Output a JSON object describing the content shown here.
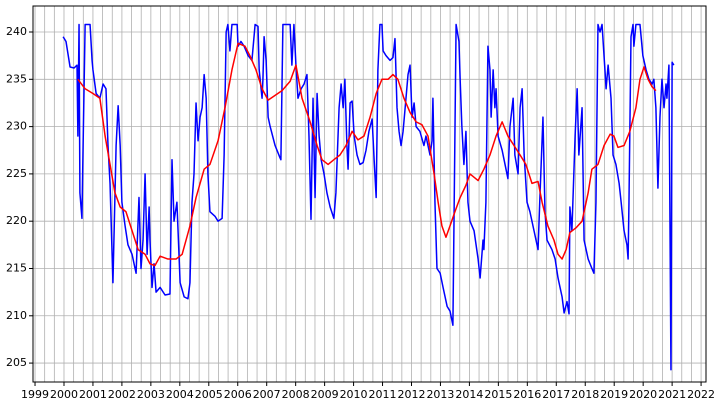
{
  "chart_data": {
    "type": "line",
    "xlim": [
      1998.93,
      2022.17
    ],
    "ylim": [
      203.0,
      242.75
    ],
    "xticks": [
      1999,
      2000,
      2001,
      2002,
      2003,
      2004,
      2005,
      2006,
      2007,
      2008,
      2009,
      2010,
      2011,
      2012,
      2013,
      2014,
      2015,
      2016,
      2017,
      2018,
      2019,
      2020,
      2021,
      2022
    ],
    "xminorticks": [
      1999.333,
      1999.667,
      2000.333,
      2000.667,
      2001.333,
      2001.667,
      2002.333,
      2002.667,
      2003.333,
      2003.667,
      2004.333,
      2004.667,
      2005.333,
      2005.667,
      2006.333,
      2006.667,
      2007.333,
      2007.667,
      2008.333,
      2008.667,
      2009.333,
      2009.667,
      2010.333,
      2010.667,
      2011.333,
      2011.667,
      2012.333,
      2012.667,
      2013.333,
      2013.667,
      2014.333,
      2014.667,
      2015.333,
      2015.667,
      2016.333,
      2016.667,
      2017.333,
      2017.667,
      2018.333,
      2018.667,
      2019.333,
      2019.667,
      2020.333,
      2020.667,
      2021.333,
      2021.667
    ],
    "yticks": [
      205,
      210,
      215,
      220,
      225,
      230,
      235,
      240
    ],
    "grid": true,
    "series": [
      {
        "color": "#0000ff",
        "x": [
          1999.97,
          2000.07,
          2000.21,
          2000.35,
          2000.45,
          2000.48,
          2000.52,
          2000.55,
          2000.62,
          2000.66,
          2000.73,
          2000.9,
          2000.97,
          2001.0,
          2001.11,
          2001.24,
          2001.35,
          2001.45,
          2001.52,
          2001.59,
          2001.69,
          2001.8,
          2001.87,
          2001.94,
          2002.0,
          2002.11,
          2002.21,
          2002.35,
          2002.49,
          2002.59,
          2002.66,
          2002.73,
          2002.8,
          2002.87,
          2002.94,
          2002.97,
          2003.04,
          2003.11,
          2003.18,
          2003.32,
          2003.49,
          2003.66,
          2003.73,
          2003.8,
          2003.9,
          2004.01,
          2004.15,
          2004.28,
          2004.35,
          2004.42,
          2004.49,
          2004.56,
          2004.63,
          2004.7,
          2004.77,
          2004.84,
          2004.91,
          2004.97,
          2005.04,
          2005.22,
          2005.32,
          2005.46,
          2005.53,
          2005.6,
          2005.66,
          2005.73,
          2005.8,
          2005.98,
          2006.01,
          2006.11,
          2006.22,
          2006.36,
          2006.49,
          2006.6,
          2006.7,
          2006.74,
          2006.84,
          2006.87,
          2006.91,
          2006.98,
          2007.05,
          2007.12,
          2007.29,
          2007.46,
          2007.49,
          2007.56,
          2007.81,
          2007.87,
          2007.94,
          2008.01,
          2008.08,
          2008.19,
          2008.29,
          2008.39,
          2008.46,
          2008.53,
          2008.6,
          2008.67,
          2008.74,
          2008.81,
          2008.88,
          2008.98,
          2009.08,
          2009.19,
          2009.32,
          2009.39,
          2009.5,
          2009.57,
          2009.64,
          2009.7,
          2009.77,
          2009.81,
          2009.88,
          2009.95,
          2010.02,
          2010.12,
          2010.22,
          2010.33,
          2010.43,
          2010.53,
          2010.64,
          2010.71,
          2010.78,
          2010.84,
          2010.91,
          2010.98,
          2011.02,
          2011.12,
          2011.26,
          2011.36,
          2011.43,
          2011.5,
          2011.57,
          2011.64,
          2011.71,
          2011.81,
          2011.88,
          2011.95,
          2012.02,
          2012.09,
          2012.16,
          2012.29,
          2012.43,
          2012.5,
          2012.64,
          2012.71,
          2012.74,
          2012.81,
          2012.88,
          2012.99,
          2013.09,
          2013.23,
          2013.33,
          2013.43,
          2013.54,
          2013.64,
          2013.68,
          2013.74,
          2013.81,
          2013.88,
          2013.95,
          2014.02,
          2014.16,
          2014.3,
          2014.37,
          2014.47,
          2014.5,
          2014.57,
          2014.64,
          2014.71,
          2014.75,
          2014.82,
          2014.88,
          2014.92,
          2014.99,
          2015.13,
          2015.23,
          2015.33,
          2015.4,
          2015.51,
          2015.57,
          2015.68,
          2015.75,
          2015.82,
          2015.89,
          2015.99,
          2016.09,
          2016.23,
          2016.37,
          2016.44,
          2016.54,
          2016.61,
          2016.68,
          2016.85,
          2016.96,
          2017.06,
          2017.2,
          2017.27,
          2017.37,
          2017.44,
          2017.47,
          2017.54,
          2017.65,
          2017.72,
          2017.78,
          2017.89,
          2017.96,
          2018.1,
          2018.23,
          2018.3,
          2018.37,
          2018.44,
          2018.51,
          2018.58,
          2018.68,
          2018.72,
          2018.79,
          2018.89,
          2018.96,
          2019.06,
          2019.17,
          2019.24,
          2019.34,
          2019.44,
          2019.48,
          2019.51,
          2019.58,
          2019.65,
          2019.68,
          2019.75,
          2019.89,
          2019.99,
          2020.1,
          2020.2,
          2020.31,
          2020.37,
          2020.44,
          2020.51,
          2020.58,
          2020.65,
          2020.72,
          2020.79,
          2020.82,
          2020.89,
          2020.96,
          2021.0,
          2021.06
        ],
        "values": [
          239.5,
          239,
          236.3,
          236.2,
          236.5,
          229,
          240.8,
          223,
          220.3,
          228,
          240.8,
          240.8,
          237,
          236,
          233.5,
          233,
          234.5,
          234,
          228,
          224,
          213.5,
          228,
          232.2,
          228,
          222,
          219.5,
          217.5,
          216.5,
          214.5,
          222.5,
          215,
          218,
          225,
          216.5,
          221.5,
          218,
          213,
          215.5,
          212.5,
          213,
          212.2,
          212.3,
          226.5,
          220,
          222,
          213.5,
          212,
          211.8,
          213.5,
          222,
          225,
          232.5,
          228.5,
          231,
          232,
          235.5,
          233,
          225,
          221,
          220.5,
          220,
          220.3,
          227,
          240,
          240.8,
          238,
          240.8,
          240.8,
          238.5,
          239,
          238.5,
          237.5,
          237,
          240.8,
          240.6,
          236,
          233,
          235,
          239.5,
          237,
          231,
          230,
          228,
          226.7,
          226.5,
          240.8,
          240.8,
          236.5,
          240.8,
          236.5,
          233,
          234,
          234.5,
          235.5,
          229,
          220.2,
          233,
          222.5,
          233.5,
          229,
          226.5,
          225,
          223,
          221.5,
          220.3,
          223,
          232,
          234.5,
          232,
          235,
          228,
          225.5,
          232.5,
          232.7,
          229,
          227,
          226,
          226.2,
          227.5,
          229.5,
          230.8,
          226.5,
          222.5,
          236,
          240.8,
          240.8,
          238,
          237.5,
          237,
          237.3,
          239.3,
          232,
          229.5,
          228,
          229.5,
          233,
          235.5,
          236.5,
          231,
          232.5,
          230,
          229.5,
          228,
          229,
          227,
          228.5,
          233,
          222,
          215,
          214.5,
          213,
          211,
          210.5,
          209,
          240.8,
          239,
          235,
          230,
          226,
          229.5,
          222,
          220,
          219,
          216,
          214,
          218,
          217,
          222,
          238.5,
          236,
          231,
          236,
          232,
          234,
          229,
          227.5,
          226,
          224.5,
          230,
          233,
          227,
          225,
          232,
          234,
          227,
          222,
          221,
          219,
          217,
          223,
          231,
          221,
          218,
          217,
          216,
          214,
          212,
          210.3,
          211.5,
          210.2,
          221.5,
          219,
          229,
          234,
          227,
          232,
          218,
          216,
          215,
          214.5,
          222,
          240.8,
          240,
          240.8,
          236,
          234,
          236.5,
          233,
          227,
          226,
          224,
          222,
          219,
          217.5,
          216,
          222,
          239.5,
          240.8,
          238.5,
          240.8,
          240.8,
          237.5,
          236,
          235,
          234.5,
          235,
          232,
          223.5,
          231,
          235,
          232,
          234.5,
          233,
          236.5,
          204.3,
          236.8,
          236.5
        ]
      },
      {
        "color": "#ff0000",
        "x": [
          2000.48,
          2000.73,
          2001.0,
          2001.24,
          2001.42,
          2001.59,
          2001.76,
          2001.94,
          2002.14,
          2002.35,
          2002.56,
          2002.8,
          2002.97,
          2003.14,
          2003.32,
          2003.59,
          2003.87,
          2004.08,
          2004.35,
          2004.56,
          2004.84,
          2005.04,
          2005.32,
          2005.56,
          2005.8,
          2006.01,
          2006.25,
          2006.42,
          2006.63,
          2006.84,
          2007.05,
          2007.29,
          2007.53,
          2007.81,
          2008.01,
          2008.22,
          2008.5,
          2008.74,
          2008.91,
          2009.12,
          2009.32,
          2009.53,
          2009.74,
          2009.95,
          2010.15,
          2010.36,
          2010.57,
          2010.78,
          2010.98,
          2011.19,
          2011.36,
          2011.53,
          2011.74,
          2011.95,
          2012.16,
          2012.36,
          2012.57,
          2012.78,
          2012.92,
          2013.05,
          2013.19,
          2013.33,
          2013.5,
          2013.68,
          2013.88,
          2014.02,
          2014.3,
          2014.5,
          2014.71,
          2014.92,
          2015.13,
          2015.33,
          2015.54,
          2015.75,
          2015.95,
          2016.16,
          2016.37,
          2016.51,
          2016.71,
          2016.92,
          2017.06,
          2017.2,
          2017.34,
          2017.47,
          2017.68,
          2017.89,
          2018.1,
          2018.23,
          2018.44,
          2018.65,
          2018.86,
          2018.99,
          2019.13,
          2019.34,
          2019.54,
          2019.75,
          2019.89,
          2020.03,
          2020.17,
          2020.31,
          2020.44
        ],
        "values": [
          235,
          234,
          233.5,
          233,
          229,
          226,
          223,
          221.5,
          221,
          219,
          217,
          216.5,
          215.5,
          215.3,
          216.3,
          216,
          216,
          216.5,
          219.5,
          222.5,
          225.5,
          226,
          228.5,
          232,
          236,
          238.8,
          238.5,
          237.5,
          236,
          234,
          232.8,
          233.3,
          233.8,
          234.8,
          236.5,
          233,
          230.5,
          228,
          226.5,
          226,
          226.5,
          227,
          228,
          229.5,
          228.6,
          229,
          231,
          233.5,
          235,
          235,
          235.5,
          235,
          233,
          231.5,
          230.5,
          230.2,
          229,
          225,
          222,
          219.5,
          218.3,
          219.5,
          221,
          222.5,
          223.8,
          225,
          224.3,
          225.5,
          227,
          229,
          230.5,
          229,
          228,
          227,
          226,
          224,
          224.2,
          222,
          219.5,
          218,
          216.5,
          216,
          217,
          218.8,
          219.3,
          220,
          223,
          225.5,
          226,
          228,
          229.2,
          229,
          227.8,
          228,
          229.5,
          232,
          235,
          236.3,
          235,
          234.2,
          233.8
        ]
      }
    ]
  }
}
